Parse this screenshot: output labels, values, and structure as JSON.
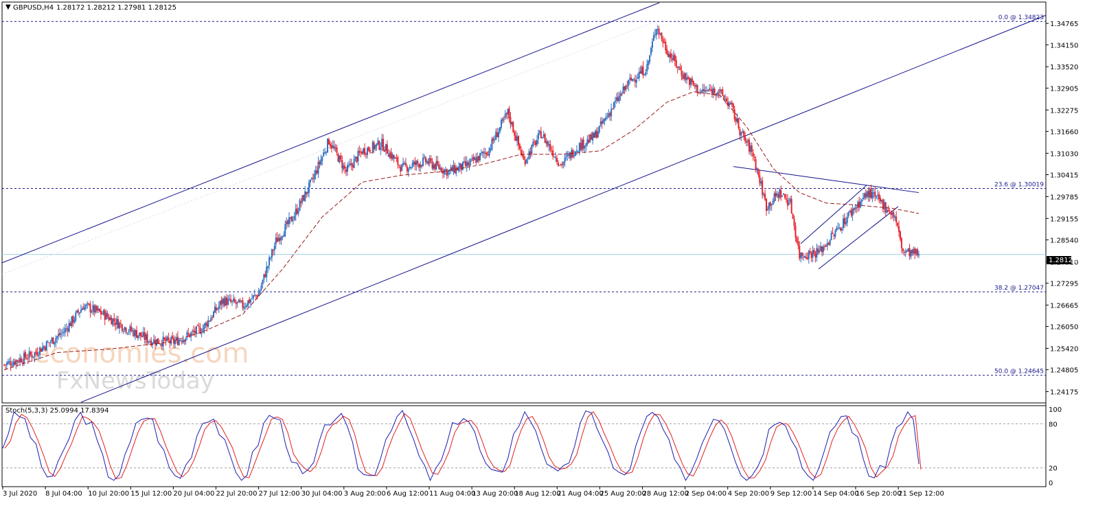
{
  "header": {
    "symbol": "GBPUSD,H4",
    "ohlc": "1.28172 1.28212 1.27981 1.28125",
    "stoch": "Stoch(5,3,3) 25.0994 17.8394"
  },
  "watermark": {
    "line1": "economies.com",
    "line2": "FxNewsToday"
  },
  "current_price_label": "1.28125",
  "fib_levels": [
    {
      "label": "0.0 @ 1.34823",
      "price": 1.34823
    },
    {
      "label": "23.6 @ 1.30019",
      "price": 1.30019
    },
    {
      "label": "38.2 @ 1.27047",
      "price": 1.27047
    },
    {
      "label": "50.0 @ 1.24645",
      "price": 1.24645
    }
  ],
  "colors": {
    "bull": "#2f6fbf",
    "bear": "#e8202a",
    "trend": "#10108a",
    "ma": "#9a1a1a",
    "stoch_main": "#1c1cb0",
    "stoch_signal": "#e02020"
  },
  "chart_data": {
    "type": "candlestick",
    "title": "GBPUSD,H4",
    "y_ticks": [
      "1.34765",
      "1.34150",
      "1.33520",
      "1.32905",
      "1.32275",
      "1.31660",
      "1.31030",
      "1.30415",
      "1.29785",
      "1.29155",
      "1.28540",
      "1.27910",
      "1.27295",
      "1.26665",
      "1.26050",
      "1.25420",
      "1.24805",
      "1.24175"
    ],
    "ylim": [
      1.2387,
      1.3536
    ],
    "x_ticks": [
      "3 Jul 2020",
      "8 Jul 04:00",
      "10 Jul 20:00",
      "15 Jul 12:00",
      "20 Jul 04:00",
      "22 Jul 20:00",
      "27 Jul 12:00",
      "30 Jul 04:00",
      "3 Aug 20:00",
      "6 Aug 12:00",
      "11 Aug 04:00",
      "13 Aug 20:00",
      "18 Aug 12:00",
      "21 Aug 04:00",
      "25 Aug 20:00",
      "28 Aug 12:00",
      "2 Sep 04:00",
      "4 Sep 20:00",
      "9 Sep 12:00",
      "14 Sep 04:00",
      "16 Sep 20:00",
      "21 Sep 12:00"
    ],
    "last_close": 1.28125,
    "close_path": [
      {
        "x": 0,
        "y": 1.2495
      },
      {
        "x": 22,
        "y": 1.2525
      },
      {
        "x": 45,
        "y": 1.259
      },
      {
        "x": 60,
        "y": 1.2665
      },
      {
        "x": 75,
        "y": 1.264
      },
      {
        "x": 92,
        "y": 1.26
      },
      {
        "x": 110,
        "y": 1.2565
      },
      {
        "x": 128,
        "y": 1.256
      },
      {
        "x": 150,
        "y": 1.26
      },
      {
        "x": 165,
        "y": 1.268
      },
      {
        "x": 180,
        "y": 1.2665
      },
      {
        "x": 192,
        "y": 1.27
      },
      {
        "x": 205,
        "y": 1.285
      },
      {
        "x": 218,
        "y": 1.292
      },
      {
        "x": 232,
        "y": 1.302
      },
      {
        "x": 245,
        "y": 1.314
      },
      {
        "x": 258,
        "y": 1.305
      },
      {
        "x": 270,
        "y": 1.311
      },
      {
        "x": 285,
        "y": 1.313
      },
      {
        "x": 300,
        "y": 1.306
      },
      {
        "x": 318,
        "y": 1.308
      },
      {
        "x": 335,
        "y": 1.305
      },
      {
        "x": 350,
        "y": 1.307
      },
      {
        "x": 365,
        "y": 1.311
      },
      {
        "x": 380,
        "y": 1.322
      },
      {
        "x": 392,
        "y": 1.308
      },
      {
        "x": 405,
        "y": 1.316
      },
      {
        "x": 420,
        "y": 1.307
      },
      {
        "x": 432,
        "y": 1.312
      },
      {
        "x": 445,
        "y": 1.315
      },
      {
        "x": 458,
        "y": 1.323
      },
      {
        "x": 472,
        "y": 1.331
      },
      {
        "x": 485,
        "y": 1.335
      },
      {
        "x": 492,
        "y": 1.347
      },
      {
        "x": 500,
        "y": 1.34
      },
      {
        "x": 512,
        "y": 1.333
      },
      {
        "x": 525,
        "y": 1.328
      },
      {
        "x": 538,
        "y": 1.3285
      },
      {
        "x": 548,
        "y": 1.324
      },
      {
        "x": 556,
        "y": 1.316
      },
      {
        "x": 565,
        "y": 1.31
      },
      {
        "x": 575,
        "y": 1.295
      },
      {
        "x": 585,
        "y": 1.299
      },
      {
        "x": 593,
        "y": 1.296
      },
      {
        "x": 600,
        "y": 1.281
      },
      {
        "x": 615,
        "y": 1.282
      },
      {
        "x": 628,
        "y": 1.288
      },
      {
        "x": 640,
        "y": 1.294
      },
      {
        "x": 652,
        "y": 1.299
      },
      {
        "x": 662,
        "y": 1.296
      },
      {
        "x": 672,
        "y": 1.292
      },
      {
        "x": 678,
        "y": 1.282
      },
      {
        "x": 690,
        "y": 1.2812
      }
    ],
    "ma_path": [
      {
        "x": 0,
        "y": 1.248
      },
      {
        "x": 40,
        "y": 1.253
      },
      {
        "x": 80,
        "y": 1.254
      },
      {
        "x": 125,
        "y": 1.256
      },
      {
        "x": 150,
        "y": 1.259
      },
      {
        "x": 180,
        "y": 1.264
      },
      {
        "x": 210,
        "y": 1.277
      },
      {
        "x": 240,
        "y": 1.292
      },
      {
        "x": 270,
        "y": 1.302
      },
      {
        "x": 300,
        "y": 1.304
      },
      {
        "x": 330,
        "y": 1.305
      },
      {
        "x": 360,
        "y": 1.307
      },
      {
        "x": 390,
        "y": 1.31
      },
      {
        "x": 420,
        "y": 1.31
      },
      {
        "x": 450,
        "y": 1.311
      },
      {
        "x": 475,
        "y": 1.317
      },
      {
        "x": 500,
        "y": 1.325
      },
      {
        "x": 520,
        "y": 1.328
      },
      {
        "x": 540,
        "y": 1.327
      },
      {
        "x": 560,
        "y": 1.318
      },
      {
        "x": 580,
        "y": 1.306
      },
      {
        "x": 600,
        "y": 1.299
      },
      {
        "x": 620,
        "y": 1.296
      },
      {
        "x": 640,
        "y": 1.2955
      },
      {
        "x": 655,
        "y": 1.295
      },
      {
        "x": 670,
        "y": 1.2945
      },
      {
        "x": 690,
        "y": 1.293
      }
    ],
    "stoch": {
      "ylim": [
        0,
        100
      ],
      "y_ticks": [
        "100",
        "80",
        "20",
        "0"
      ],
      "levels": [
        80,
        20
      ],
      "main_last": 25.0994,
      "signal_last": 17.8394
    }
  }
}
